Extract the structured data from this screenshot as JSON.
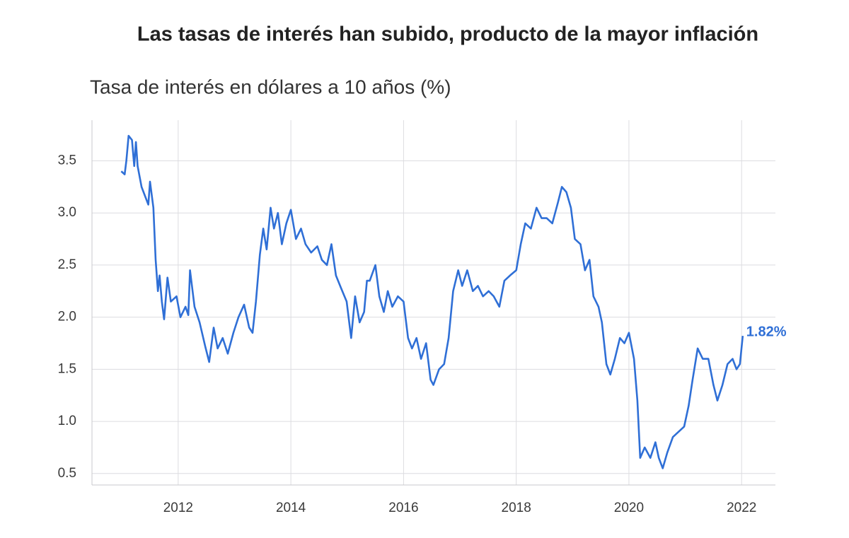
{
  "chart_data": {
    "type": "line",
    "title": "Las tasas de interés han subido, producto de la mayor inflación",
    "subtitle": "Tasa de interés en dólares a 10 años (%)",
    "color": "#2f6fd6",
    "grid": true,
    "x": [
      2010.99,
      2011.05,
      2011.08,
      2011.12,
      2011.18,
      2011.22,
      2011.25,
      2011.28,
      2011.35,
      2011.47,
      2011.5,
      2011.56,
      2011.6,
      2011.64,
      2011.67,
      2011.71,
      2011.75,
      2011.81,
      2011.87,
      2011.97,
      2012.04,
      2012.13,
      2012.18,
      2012.21,
      2012.29,
      2012.38,
      2012.48,
      2012.55,
      2012.63,
      2012.7,
      2012.79,
      2012.88,
      2012.98,
      2013.07,
      2013.17,
      2013.26,
      2013.32,
      2013.38,
      2013.45,
      2013.51,
      2013.57,
      2013.64,
      2013.7,
      2013.77,
      2013.84,
      2013.92,
      2014.0,
      2014.09,
      2014.18,
      2014.26,
      2014.36,
      2014.47,
      2014.55,
      2014.64,
      2014.72,
      2014.8,
      2014.89,
      2014.99,
      2015.07,
      2015.14,
      2015.22,
      2015.3,
      2015.35,
      2015.4,
      2015.5,
      2015.57,
      2015.65,
      2015.72,
      2015.8,
      2015.9,
      2016.0,
      2016.08,
      2016.15,
      2016.23,
      2016.31,
      2016.4,
      2016.48,
      2016.53,
      2016.63,
      2016.72,
      2016.8,
      2016.88,
      2016.97,
      2017.04,
      2017.13,
      2017.23,
      2017.32,
      2017.41,
      2017.51,
      2017.6,
      2017.7,
      2017.79,
      2017.89,
      2018.0,
      2018.08,
      2018.16,
      2018.26,
      2018.36,
      2018.45,
      2018.54,
      2018.64,
      2018.74,
      2018.81,
      2018.89,
      2018.97,
      2019.04,
      2019.14,
      2019.22,
      2019.3,
      2019.37,
      2019.46,
      2019.52,
      2019.6,
      2019.67,
      2019.75,
      2019.84,
      2019.92,
      2020.0,
      2020.09,
      2020.15,
      2020.2,
      2020.28,
      2020.38,
      2020.47,
      2020.53,
      2020.6,
      2020.68,
      2020.78,
      2020.88,
      2020.98,
      2021.06,
      2021.13,
      2021.22,
      2021.31,
      2021.41,
      2021.5,
      2021.57,
      2021.66,
      2021.75,
      2021.84,
      2021.91,
      2021.97,
      2022.02
    ],
    "values": [
      3.4,
      3.37,
      3.5,
      3.74,
      3.7,
      3.45,
      3.68,
      3.45,
      3.25,
      3.08,
      3.3,
      3.05,
      2.55,
      2.25,
      2.4,
      2.15,
      1.98,
      2.38,
      2.15,
      2.2,
      2.0,
      2.1,
      2.02,
      2.45,
      2.1,
      1.95,
      1.72,
      1.57,
      1.9,
      1.7,
      1.8,
      1.65,
      1.85,
      2.0,
      2.12,
      1.9,
      1.85,
      2.15,
      2.6,
      2.85,
      2.65,
      3.05,
      2.85,
      3.0,
      2.7,
      2.9,
      3.03,
      2.75,
      2.85,
      2.7,
      2.62,
      2.68,
      2.55,
      2.5,
      2.7,
      2.4,
      2.28,
      2.15,
      1.8,
      2.2,
      1.95,
      2.05,
      2.35,
      2.35,
      2.5,
      2.2,
      2.05,
      2.25,
      2.1,
      2.2,
      2.15,
      1.8,
      1.7,
      1.8,
      1.6,
      1.75,
      1.4,
      1.35,
      1.5,
      1.55,
      1.8,
      2.25,
      2.45,
      2.3,
      2.45,
      2.25,
      2.3,
      2.2,
      2.25,
      2.2,
      2.1,
      2.35,
      2.4,
      2.45,
      2.7,
      2.9,
      2.85,
      3.05,
      2.95,
      2.95,
      2.9,
      3.1,
      3.25,
      3.2,
      3.05,
      2.75,
      2.7,
      2.45,
      2.55,
      2.2,
      2.1,
      1.95,
      1.55,
      1.45,
      1.6,
      1.8,
      1.75,
      1.85,
      1.6,
      1.2,
      0.65,
      0.75,
      0.65,
      0.8,
      0.65,
      0.55,
      0.7,
      0.85,
      0.9,
      0.95,
      1.15,
      1.4,
      1.7,
      1.6,
      1.6,
      1.35,
      1.2,
      1.35,
      1.55,
      1.6,
      1.5,
      1.55,
      1.82
    ],
    "annotations": [
      {
        "x": 2022.02,
        "y": 1.82,
        "text": "1.82%"
      }
    ],
    "xlim": [
      2010.47,
      2022.6
    ],
    "xticks": [
      2012,
      2014,
      2016,
      2018,
      2020,
      2022
    ],
    "ylim": [
      0.39,
      3.89
    ],
    "yticks": [
      0.5,
      {
        "value": 1,
        "label": "1.0"
      },
      1.5,
      {
        "value": 2,
        "label": "2.0"
      },
      2.5,
      {
        "value": 3,
        "label": "3.0"
      },
      3.5
    ]
  }
}
